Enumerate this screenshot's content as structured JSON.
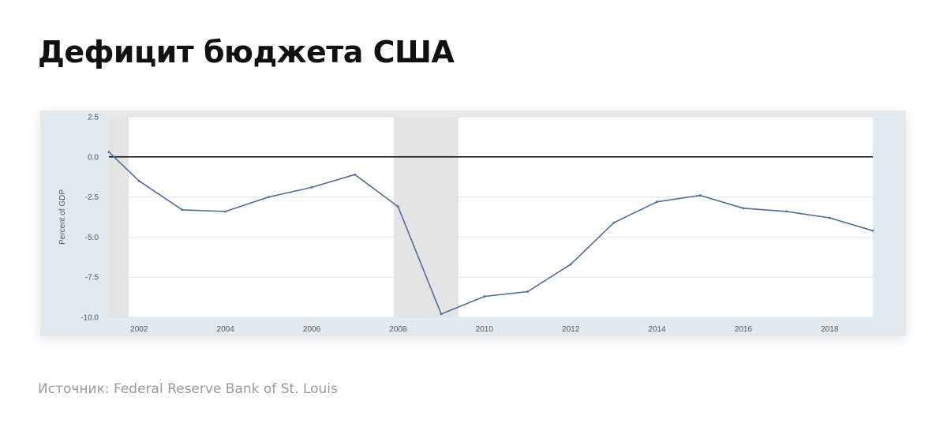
{
  "title": "Дефицит бюджета США",
  "source": "Источник: Federal Reserve Bank of St. Louis",
  "colors": {
    "line": "#4f6d98",
    "recession_band": "#e4e4e4",
    "card_background": "#e1e9f1",
    "zero_line": "#000000"
  },
  "chart_data": {
    "type": "line",
    "title": "",
    "xlabel": "",
    "ylabel": "Percent of GDP",
    "xlim": [
      2001.3,
      2019
    ],
    "ylim": [
      -10.0,
      2.5
    ],
    "yticks": [
      2.5,
      0.0,
      -2.5,
      -5.0,
      -7.5,
      -10.0
    ],
    "ytick_labels": [
      "2.5",
      "0.0",
      "-2.5",
      "-5.0",
      "-7.5",
      "-10.0"
    ],
    "xticks": [
      2002,
      2004,
      2006,
      2008,
      2010,
      2012,
      2014,
      2016,
      2018
    ],
    "xtick_labels": [
      "2002",
      "2004",
      "2006",
      "2008",
      "2010",
      "2012",
      "2014",
      "2016",
      "2018"
    ],
    "grid": "horizontal",
    "legend": "none",
    "reference_line_y": 0,
    "recessions": [
      [
        2001.3,
        2001.75
      ],
      [
        2007.9,
        2009.4
      ]
    ],
    "series": [
      {
        "x": [
          2001.3,
          2002,
          2003,
          2004,
          2005,
          2006,
          2007,
          2008,
          2009,
          2010,
          2011,
          2012,
          2013,
          2014,
          2015,
          2016,
          2017,
          2018,
          2019
        ],
        "values": [
          0.3,
          -1.5,
          -3.3,
          -3.4,
          -2.5,
          -1.9,
          -1.1,
          -3.1,
          -9.8,
          -8.7,
          -8.4,
          -6.7,
          -4.1,
          -2.8,
          -2.4,
          -3.2,
          -3.4,
          -3.8,
          -4.6
        ]
      }
    ]
  }
}
